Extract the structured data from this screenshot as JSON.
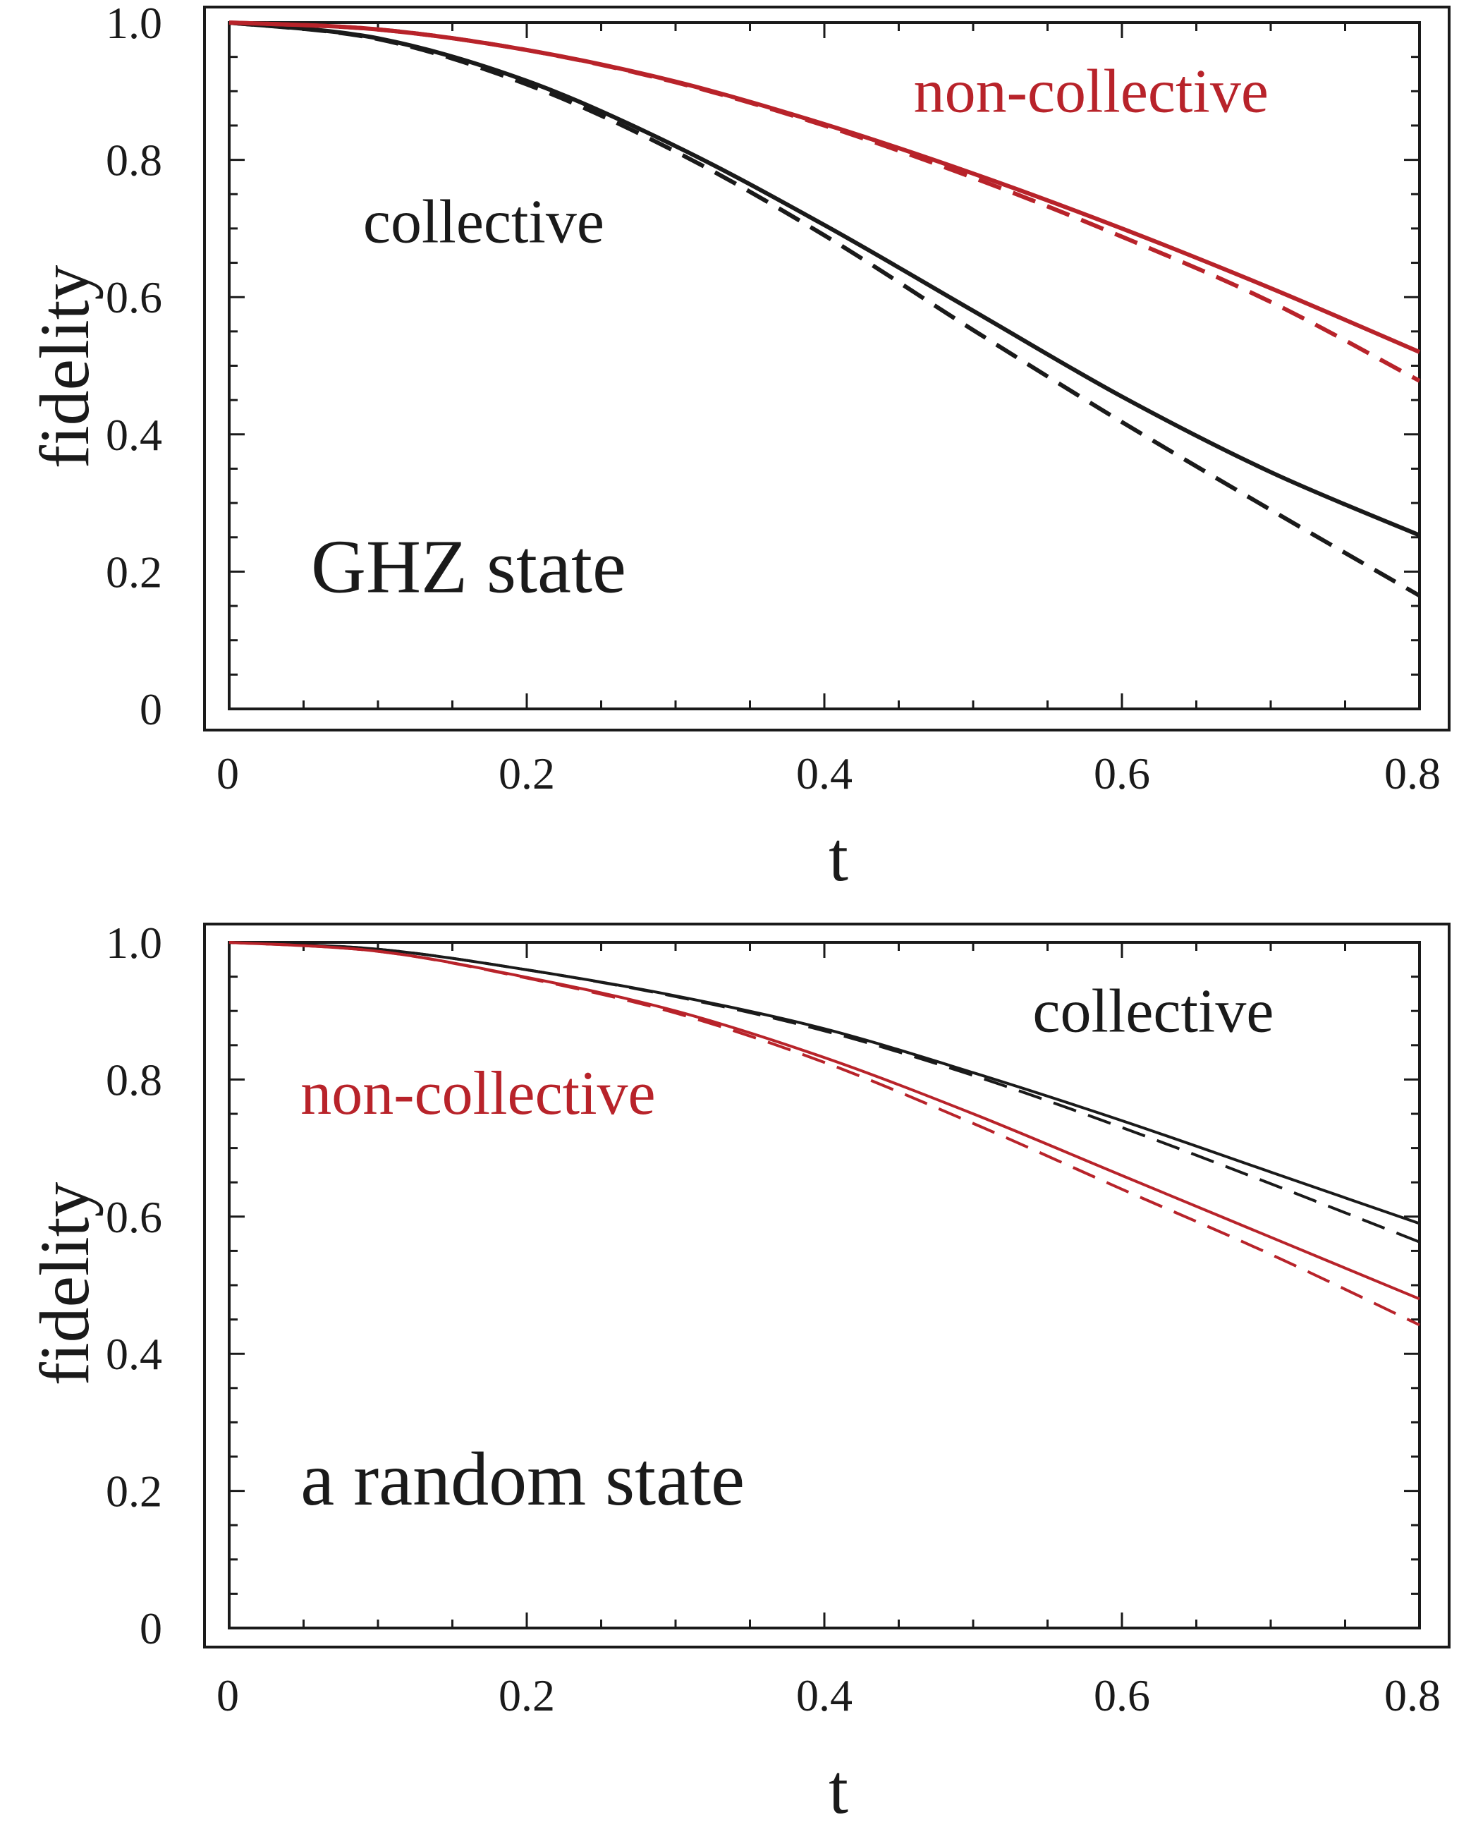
{
  "colors": {
    "black": "#1a1a1a",
    "red": "#b8232a"
  },
  "chart_data": [
    {
      "type": "line",
      "title": "",
      "xlabel": "t",
      "ylabel": "fidelity",
      "xlim": [
        0,
        0.8
      ],
      "ylim": [
        0,
        1.0
      ],
      "xticks": [
        {
          "value": 0,
          "label": "0"
        },
        {
          "value": 0.2,
          "label": "0.2"
        },
        {
          "value": 0.4,
          "label": "0.4"
        },
        {
          "value": 0.6,
          "label": "0.6"
        },
        {
          "value": 0.8,
          "label": "0.8"
        }
      ],
      "yticks": [
        {
          "value": 0,
          "label": "0"
        },
        {
          "value": 0.2,
          "label": "0.2"
        },
        {
          "value": 0.4,
          "label": "0.4"
        },
        {
          "value": 0.6,
          "label": "0.6"
        },
        {
          "value": 0.8,
          "label": "0.8"
        },
        {
          "value": 1.0,
          "label": "1.0"
        }
      ],
      "state_label": "GHZ state",
      "annotations": [
        {
          "text": "non-collective",
          "color": "red",
          "x": 0.46,
          "y": 0.87
        },
        {
          "text": "collective",
          "color": "black",
          "x": 0.09,
          "y": 0.68
        }
      ],
      "state_label_pos": {
        "x": 0.055,
        "y": 0.17
      },
      "x": [
        0,
        0.1,
        0.2,
        0.3,
        0.4,
        0.5,
        0.6,
        0.7,
        0.8
      ],
      "series": [
        {
          "name": "collective (solid)",
          "color": "black",
          "dashed": false,
          "width": 6,
          "values": [
            1.0,
            0.977,
            0.915,
            0.82,
            0.705,
            0.58,
            0.455,
            0.345,
            0.253
          ]
        },
        {
          "name": "collective (dashed)",
          "color": "black",
          "dashed": true,
          "width": 6,
          "values": [
            1.0,
            0.976,
            0.91,
            0.812,
            0.69,
            0.552,
            0.418,
            0.29,
            0.165
          ]
        },
        {
          "name": "non-collective (solid)",
          "color": "red",
          "dashed": false,
          "width": 6,
          "values": [
            1.0,
            0.99,
            0.96,
            0.914,
            0.852,
            0.78,
            0.7,
            0.613,
            0.52
          ]
        },
        {
          "name": "non-collective (dashed)",
          "color": "red",
          "dashed": true,
          "width": 6,
          "values": [
            1.0,
            0.99,
            0.96,
            0.913,
            0.85,
            0.774,
            0.688,
            0.593,
            0.478
          ]
        }
      ]
    },
    {
      "type": "line",
      "title": "",
      "xlabel": "t",
      "ylabel": "fidelity",
      "xlim": [
        0,
        0.8
      ],
      "ylim": [
        0,
        1.0
      ],
      "xticks": [
        {
          "value": 0,
          "label": "0"
        },
        {
          "value": 0.2,
          "label": "0.2"
        },
        {
          "value": 0.4,
          "label": "0.4"
        },
        {
          "value": 0.6,
          "label": "0.6"
        },
        {
          "value": 0.8,
          "label": "0.8"
        }
      ],
      "yticks": [
        {
          "value": 0,
          "label": "0"
        },
        {
          "value": 0.2,
          "label": "0.2"
        },
        {
          "value": 0.4,
          "label": "0.4"
        },
        {
          "value": 0.6,
          "label": "0.6"
        },
        {
          "value": 0.8,
          "label": "0.8"
        },
        {
          "value": 1.0,
          "label": "1.0"
        }
      ],
      "state_label": "a random state",
      "annotations": [
        {
          "text": "collective",
          "color": "black",
          "x": 0.54,
          "y": 0.87
        },
        {
          "text": "non-collective",
          "color": "red",
          "x": 0.048,
          "y": 0.75
        }
      ],
      "state_label_pos": {
        "x": 0.048,
        "y": 0.18
      },
      "x": [
        0,
        0.1,
        0.2,
        0.3,
        0.4,
        0.5,
        0.6,
        0.7,
        0.8
      ],
      "series": [
        {
          "name": "collective (solid)",
          "color": "black",
          "dashed": false,
          "width": 4,
          "values": [
            1.0,
            0.99,
            0.96,
            0.922,
            0.874,
            0.81,
            0.74,
            0.665,
            0.59
          ]
        },
        {
          "name": "collective (dashed)",
          "color": "black",
          "dashed": true,
          "width": 4,
          "values": [
            1.0,
            0.99,
            0.96,
            0.921,
            0.871,
            0.806,
            0.73,
            0.648,
            0.563
          ]
        },
        {
          "name": "non-collective (solid)",
          "color": "red",
          "dashed": false,
          "width": 4,
          "values": [
            1.0,
            0.987,
            0.949,
            0.9,
            0.832,
            0.75,
            0.66,
            0.57,
            0.48
          ]
        },
        {
          "name": "non-collective (dashed)",
          "color": "red",
          "dashed": true,
          "width": 4,
          "values": [
            1.0,
            0.987,
            0.948,
            0.897,
            0.825,
            0.736,
            0.64,
            0.545,
            0.442
          ]
        }
      ]
    }
  ]
}
